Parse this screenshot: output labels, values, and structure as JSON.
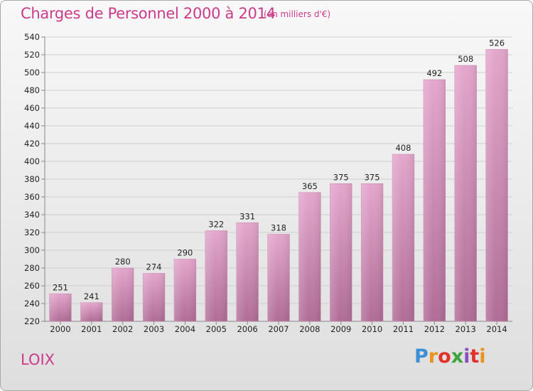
{
  "header": {
    "title": "Charges de Personnel 2000 à 2014",
    "subtitle": "(en milliers d'€)"
  },
  "commune": "LOIX",
  "logo": {
    "text": "Proxiti",
    "letter_colors": [
      "#3c8fd6",
      "#e8941c",
      "#e0312a",
      "#3da33d",
      "#8a4fbf",
      "#e0312a",
      "#e8941c"
    ]
  },
  "chart_data": {
    "type": "bar",
    "title": "Charges de Personnel 2000 à 2014",
    "subtitle": "(en milliers d'€)",
    "xlabel": "",
    "ylabel": "",
    "categories": [
      "2000",
      "2001",
      "2002",
      "2003",
      "2004",
      "2005",
      "2006",
      "2007",
      "2008",
      "2009",
      "2010",
      "2011",
      "2012",
      "2013",
      "2014"
    ],
    "values": [
      251,
      241,
      280,
      274,
      290,
      322,
      331,
      318,
      365,
      375,
      375,
      408,
      492,
      508,
      526
    ],
    "ylim": [
      220,
      540
    ],
    "yticks": [
      220,
      240,
      260,
      280,
      300,
      320,
      340,
      360,
      380,
      400,
      420,
      440,
      460,
      480,
      500,
      520,
      540
    ],
    "grid": true,
    "bar_color_top": "#e4a6cc",
    "bar_color_bottom": "#b06d96"
  }
}
